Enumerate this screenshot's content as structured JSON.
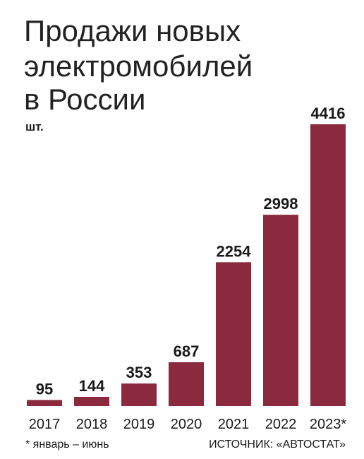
{
  "chart_data": {
    "type": "bar",
    "title": [
      "Продажи новых",
      "электромобилей",
      "в России"
    ],
    "subtitle": "шт.",
    "categories": [
      "2017",
      "2018",
      "2019",
      "2020",
      "2021",
      "2022",
      "2023*"
    ],
    "values": [
      95,
      144,
      353,
      687,
      2254,
      2998,
      4416
    ],
    "color": "#8b2a3e",
    "note": "* январь – июнь",
    "source": "ИСТОЧНИК: «АВТОСТАТ»"
  }
}
